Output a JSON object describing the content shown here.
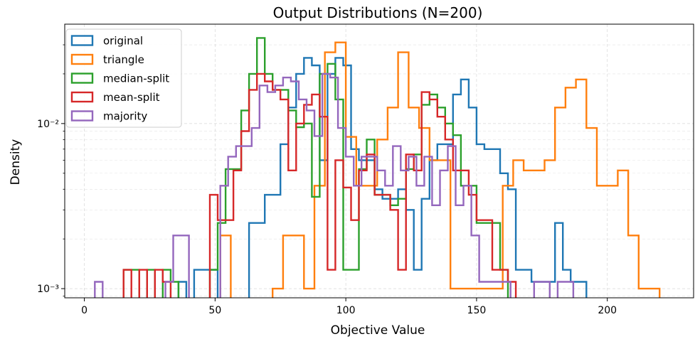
{
  "chart_data": {
    "type": "step-histogram",
    "title": "Output Distributions (N=200)",
    "xlabel": "Objective Value",
    "ylabel": "Density",
    "xlim": [
      -7.5,
      233
    ],
    "ylim": [
      0.00088,
      0.04
    ],
    "yscale": "log",
    "xticks": [
      0,
      50,
      100,
      150,
      200
    ],
    "yticks": [
      {
        "value": 0.001,
        "label": "10⁻³"
      },
      {
        "value": 0.01,
        "label": "10⁻²"
      }
    ],
    "grid": true,
    "legend_position": "upper-left",
    "series": [
      {
        "name": "original",
        "color": "#1f77b4",
        "bin_edges": [
          33,
          36,
          39,
          42,
          45,
          48,
          51,
          54,
          57,
          60,
          63,
          66,
          69,
          72,
          75,
          78,
          81,
          84,
          87,
          90,
          93,
          96,
          99,
          102,
          105,
          108,
          111,
          114,
          117,
          120,
          123,
          126,
          129,
          132,
          135,
          138,
          141,
          144,
          147,
          150,
          153,
          156,
          159,
          162,
          165,
          168,
          171,
          174,
          177,
          180,
          183,
          186,
          189,
          192,
          195
        ],
        "values": [
          0,
          0.0011,
          0,
          0.0013,
          0.0013,
          0.0013,
          0,
          0,
          0,
          0,
          0.0025,
          0.0025,
          0.0037,
          0.0037,
          0.0075,
          0.0125,
          0.02,
          0.025,
          0.0225,
          0.006,
          0.02,
          0.025,
          0.0225,
          0.007,
          0.006,
          0.006,
          0.004,
          0.0035,
          0.0035,
          0.004,
          0.003,
          0.0013,
          0.0035,
          0.006,
          0.0075,
          0.0075,
          0.015,
          0.0185,
          0.0125,
          0.0075,
          0.007,
          0.007,
          0.005,
          0.004,
          0.0013,
          0.0013,
          0.0011,
          0.0011,
          0.0011,
          0.0025,
          0.0013,
          0.0011,
          0.0011,
          0
        ]
      },
      {
        "name": "triangle",
        "color": "#ff7f0e",
        "bin_edges": [
          36,
          40,
          44,
          48,
          52,
          56,
          60,
          64,
          68,
          72,
          76,
          80,
          84,
          88,
          92,
          96,
          100,
          104,
          108,
          112,
          116,
          120,
          124,
          128,
          132,
          136,
          140,
          144,
          148,
          152,
          156,
          160,
          164,
          168,
          172,
          176,
          180,
          184,
          188,
          192,
          196,
          200,
          204,
          208,
          212,
          216,
          220,
          224
        ],
        "values": [
          0,
          0,
          0,
          0,
          0.0021,
          0,
          0,
          0,
          0,
          0.001,
          0.0021,
          0.0021,
          0.001,
          0.0042,
          0.027,
          0.031,
          0.0083,
          0.0042,
          0.0042,
          0.008,
          0.0125,
          0.027,
          0.0125,
          0.0094,
          0.006,
          0.006,
          0.001,
          0.001,
          0.001,
          0.001,
          0.001,
          0.0042,
          0.006,
          0.0052,
          0.0052,
          0.006,
          0.0125,
          0.0165,
          0.0185,
          0.0094,
          0.0042,
          0.0042,
          0.0052,
          0.0021,
          0.001,
          0.001,
          0
        ]
      },
      {
        "name": "median-split",
        "color": "#2ca02c",
        "bin_edges": [
          12,
          15,
          18,
          21,
          24,
          27,
          30,
          33,
          36,
          39,
          42,
          45,
          48,
          51,
          54,
          57,
          60,
          63,
          66,
          69,
          72,
          75,
          78,
          81,
          84,
          87,
          90,
          93,
          96,
          99,
          102,
          105,
          108,
          111,
          114,
          117,
          120,
          123,
          126,
          129,
          132,
          135,
          138,
          141,
          144,
          147,
          150,
          153,
          156,
          159,
          162,
          165
        ],
        "values": [
          0,
          0.0013,
          0.0013,
          0,
          0.0013,
          0,
          0.0013,
          0.0011,
          0,
          0,
          0,
          0,
          0.0013,
          0.0025,
          0.0053,
          0.0053,
          0.012,
          0.02,
          0.033,
          0.02,
          0.016,
          0.016,
          0.012,
          0.0095,
          0.01,
          0.0036,
          0.02,
          0.023,
          0.014,
          0.0013,
          0.0013,
          0.0053,
          0.008,
          0.0037,
          0.0037,
          0.0032,
          0.0035,
          0.0053,
          0.0065,
          0.013,
          0.015,
          0.0125,
          0.01,
          0.0085,
          0.0042,
          0.0042,
          0.0025,
          0.0025,
          0.0025,
          0.0013,
          0
        ]
      },
      {
        "name": "mean-split",
        "color": "#d62728",
        "bin_edges": [
          15,
          18,
          21,
          24,
          27,
          30,
          33,
          36,
          39,
          42,
          45,
          48,
          51,
          54,
          57,
          60,
          63,
          66,
          69,
          72,
          75,
          78,
          81,
          84,
          87,
          90,
          93,
          96,
          99,
          102,
          105,
          108,
          111,
          114,
          117,
          120,
          123,
          126,
          129,
          132,
          135,
          138,
          141,
          144,
          147,
          150,
          153,
          156,
          159,
          162,
          165,
          168
        ],
        "values": [
          0.0013,
          0,
          0.0013,
          0,
          0.0013,
          0.0011,
          0,
          0,
          0,
          0,
          0,
          0.0037,
          0.0026,
          0.0026,
          0.0052,
          0.009,
          0.016,
          0.02,
          0.018,
          0.016,
          0.014,
          0.0052,
          0.01,
          0.013,
          0.015,
          0.011,
          0.0013,
          0.006,
          0.0041,
          0.0026,
          0.0052,
          0.0065,
          0.0037,
          0.0037,
          0.003,
          0.0013,
          0.0065,
          0.0052,
          0.0155,
          0.014,
          0.011,
          0.008,
          0.0052,
          0.0052,
          0.0037,
          0.0026,
          0.0026,
          0.0013,
          0.0013,
          0.0011,
          0
        ]
      },
      {
        "name": "majority",
        "color": "#9467bd",
        "bin_edges": [
          4,
          7,
          10,
          13,
          16,
          19,
          22,
          25,
          28,
          31,
          34,
          37,
          40,
          43,
          46,
          49,
          52,
          55,
          58,
          61,
          64,
          67,
          70,
          73,
          76,
          79,
          82,
          85,
          88,
          91,
          94,
          97,
          100,
          103,
          106,
          109,
          112,
          115,
          118,
          121,
          124,
          127,
          130,
          133,
          136,
          139,
          142,
          145,
          148,
          151,
          154,
          157,
          160,
          163,
          166,
          169,
          172,
          175,
          178,
          181,
          184,
          187,
          190
        ],
        "values": [
          0.0011,
          0,
          0,
          0,
          0,
          0,
          0,
          0,
          0,
          0.0011,
          0.0021,
          0.0021,
          0,
          0,
          0,
          0,
          0.0042,
          0.0063,
          0.0073,
          0.0073,
          0.0094,
          0.017,
          0.0155,
          0.017,
          0.019,
          0.018,
          0.014,
          0.012,
          0.0084,
          0.02,
          0.019,
          0.0094,
          0.0063,
          0.0042,
          0.0063,
          0.0063,
          0.0052,
          0.0042,
          0.0073,
          0.0052,
          0.0063,
          0.0042,
          0.0063,
          0.0032,
          0.0052,
          0.0073,
          0.0032,
          0.0042,
          0.0021,
          0.0011,
          0.0011,
          0.0011,
          0.0011,
          0,
          0,
          0,
          0.0011,
          0.0011,
          0,
          0.0011,
          0.0011,
          0
        ]
      }
    ]
  }
}
